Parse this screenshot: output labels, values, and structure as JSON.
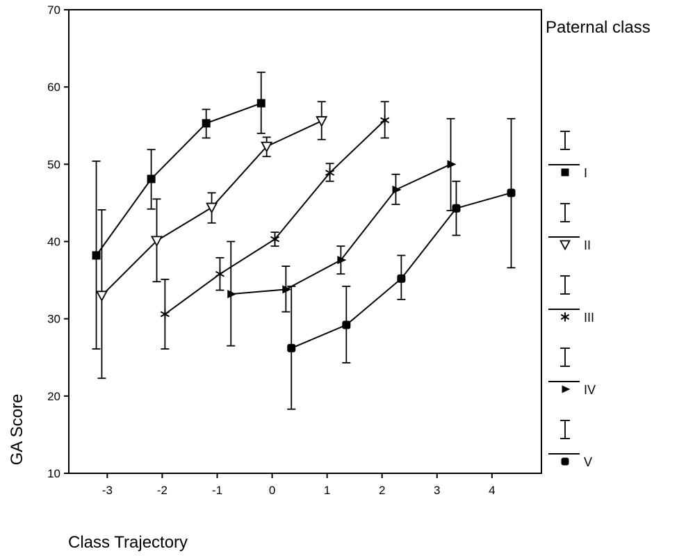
{
  "chart_data": {
    "type": "line",
    "title": "",
    "xlabel": "Class Trajectory",
    "ylabel": "GA Score",
    "xlim": [
      -3.7,
      4.9
    ],
    "ylim": [
      10,
      70
    ],
    "xticks": [
      -3,
      -2,
      -1,
      0,
      1,
      2,
      3,
      4
    ],
    "yticks": [
      10,
      20,
      30,
      40,
      50,
      60,
      70
    ],
    "grid": false,
    "legend": {
      "title": "Paternal class",
      "placement": "right"
    },
    "series": [
      {
        "name": "I",
        "marker": "square",
        "x": [
          -3.2,
          -2.2,
          -1.2,
          -0.2
        ],
        "y": [
          38.2,
          48.1,
          55.3,
          57.9
        ],
        "err_low": [
          26.1,
          44.2,
          53.4,
          54.0
        ],
        "err_high": [
          50.4,
          51.9,
          57.1,
          61.9
        ]
      },
      {
        "name": "II",
        "marker": "triangle-down-open",
        "x": [
          -3.1,
          -2.1,
          -1.1,
          -0.1,
          0.9
        ],
        "y": [
          33.0,
          40.1,
          44.4,
          52.3,
          55.6
        ],
        "err_low": [
          22.3,
          34.8,
          42.4,
          51.0,
          53.2
        ],
        "err_high": [
          44.1,
          45.5,
          46.3,
          53.5,
          58.1
        ]
      },
      {
        "name": "III",
        "marker": "asterisk",
        "x": [
          -1.95,
          -0.95,
          0.05,
          1.05,
          2.05
        ],
        "y": [
          30.6,
          35.8,
          40.3,
          48.9,
          55.7
        ],
        "err_low": [
          26.1,
          33.7,
          39.4,
          47.8,
          53.4
        ],
        "err_high": [
          35.1,
          37.9,
          41.2,
          50.1,
          58.1
        ]
      },
      {
        "name": "IV",
        "marker": "triangle-right",
        "x": [
          -0.75,
          0.25,
          1.25,
          2.25,
          3.25
        ],
        "y": [
          33.2,
          33.8,
          37.6,
          46.7,
          50.0
        ],
        "err_low": [
          26.5,
          30.9,
          35.8,
          44.8,
          44.0
        ],
        "err_high": [
          40.0,
          36.8,
          39.4,
          48.7,
          55.9
        ]
      },
      {
        "name": "V",
        "marker": "circle-filled",
        "x": [
          0.35,
          1.35,
          2.35,
          3.35,
          4.35
        ],
        "y": [
          26.2,
          29.2,
          35.2,
          44.3,
          46.3
        ],
        "err_low": [
          18.3,
          24.3,
          32.5,
          40.8,
          36.6
        ],
        "err_high": [
          34.2,
          34.2,
          38.2,
          47.8,
          55.9
        ]
      }
    ]
  }
}
